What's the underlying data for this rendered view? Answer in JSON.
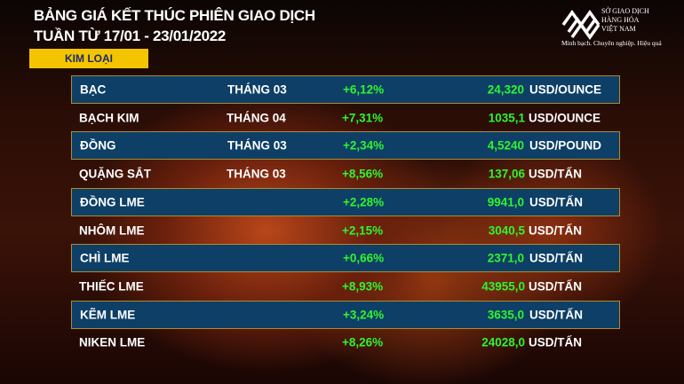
{
  "header": {
    "title_line1": "BẢNG GIÁ KẾT THÚC PHIÊN GIAO DỊCH",
    "title_line2": "TUẦN TỪ 17/01 - 23/01/2022",
    "category": "KIM LOẠI"
  },
  "logo": {
    "name_line1": "SỞ GIAO DỊCH",
    "name_line2": "HÀNG HÓA",
    "name_line3": "VIỆT NAM",
    "slogan": "Minh bạch. Chuyên nghiệp. Hiệu quả"
  },
  "colors": {
    "highlight_row": "#0e3f66",
    "positive": "#2ef52e",
    "badge": "#f5c400"
  },
  "rows": [
    {
      "name": "BẠC",
      "month": "THÁNG 03",
      "change": "+6,12%",
      "price": "24,320",
      "unit": "USD/OUNCE"
    },
    {
      "name": "BẠCH KIM",
      "month": "THÁNG 04",
      "change": "+7,31%",
      "price": "1035,1",
      "unit": "USD/OUNCE"
    },
    {
      "name": "ĐỒNG",
      "month": "THÁNG 03",
      "change": "+2,34%",
      "price": "4,5240",
      "unit": "USD/POUND"
    },
    {
      "name": "QUẶNG SẮT",
      "month": "THÁNG 03",
      "change": "+8,56%",
      "price": "137,06",
      "unit": "USD/TẤN"
    },
    {
      "name": "ĐỒNG LME",
      "month": "",
      "change": "+2,28%",
      "price": "9941,0",
      "unit": "USD/TẤN"
    },
    {
      "name": "NHÔM LME",
      "month": "",
      "change": "+2,15%",
      "price": "3040,5",
      "unit": "USD/TẤN"
    },
    {
      "name": "CHÌ LME",
      "month": "",
      "change": "+0,66%",
      "price": "2371,0",
      "unit": "USD/TẤN"
    },
    {
      "name": "THIẾC LME",
      "month": "",
      "change": "+8,93%",
      "price": "43955,0",
      "unit": "USD/TẤN"
    },
    {
      "name": "KẼM LME",
      "month": "",
      "change": "+3,24%",
      "price": "3635,0",
      "unit": "USD/TẤN"
    },
    {
      "name": "NIKEN LME",
      "month": "",
      "change": "+8,26%",
      "price": "24028,0",
      "unit": "USD/TẤN"
    }
  ]
}
